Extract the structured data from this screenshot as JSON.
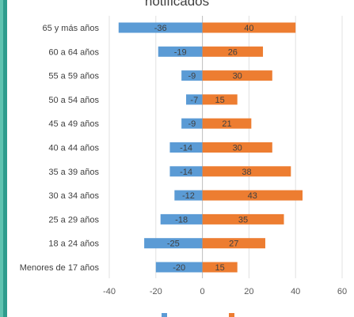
{
  "chart_data": {
    "type": "bar",
    "orientation": "horizontal",
    "title": "notificados",
    "categories": [
      "65 y más años",
      "60 a 64 años",
      "55 a 59 años",
      "50 a 54 años",
      "45 a 49 años",
      "40 a 44 años",
      "35 a 39 años",
      "30 a 34 años",
      "25 a 29 años",
      "18 a 24 años",
      "Menores de 17 años"
    ],
    "series": [
      {
        "color": "#5b9bd5",
        "values": [
          -36,
          -19,
          -9,
          -7,
          -9,
          -14,
          -14,
          -12,
          -18,
          -25,
          -20
        ]
      },
      {
        "color": "#ed7d31",
        "values": [
          40,
          26,
          30,
          15,
          21,
          30,
          38,
          43,
          35,
          27,
          15
        ]
      }
    ],
    "xlim": [
      -40,
      60
    ],
    "xticks": [
      -40,
      -20,
      0,
      20,
      40,
      60
    ],
    "legend_position": "bottom",
    "grid": true
  }
}
